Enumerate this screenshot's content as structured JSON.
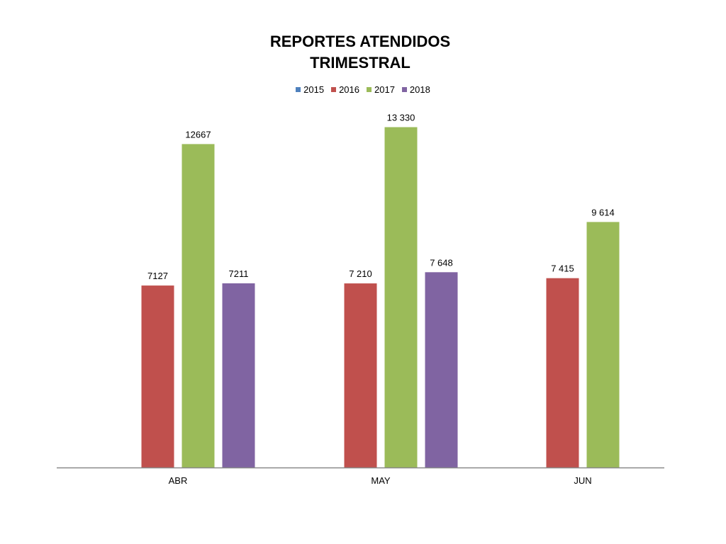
{
  "chart_data": {
    "type": "bar",
    "title": [
      "REPORTES ATENDIDOS",
      "TRIMESTRAL"
    ],
    "categories": [
      "ABR",
      "MAY",
      "JUN"
    ],
    "legend_position": "top",
    "grid": false,
    "ylim": [
      0,
      14000
    ],
    "series": [
      {
        "name": "2015",
        "color": "#4F81BD",
        "values": [
          null,
          null,
          null
        ],
        "labels": [
          "",
          "",
          ""
        ]
      },
      {
        "name": "2016",
        "color": "#C0504D",
        "values": [
          7127,
          7210,
          7415
        ],
        "labels": [
          "7127",
          "7 210",
          "7 415"
        ]
      },
      {
        "name": "2017",
        "color": "#9BBB59",
        "values": [
          12667,
          13330,
          9614
        ],
        "labels": [
          "12667",
          "13 330",
          "9 614"
        ]
      },
      {
        "name": "2018",
        "color": "#8064A2",
        "values": [
          7211,
          7648,
          null
        ],
        "labels": [
          "7211",
          "7 648",
          ""
        ]
      }
    ]
  }
}
